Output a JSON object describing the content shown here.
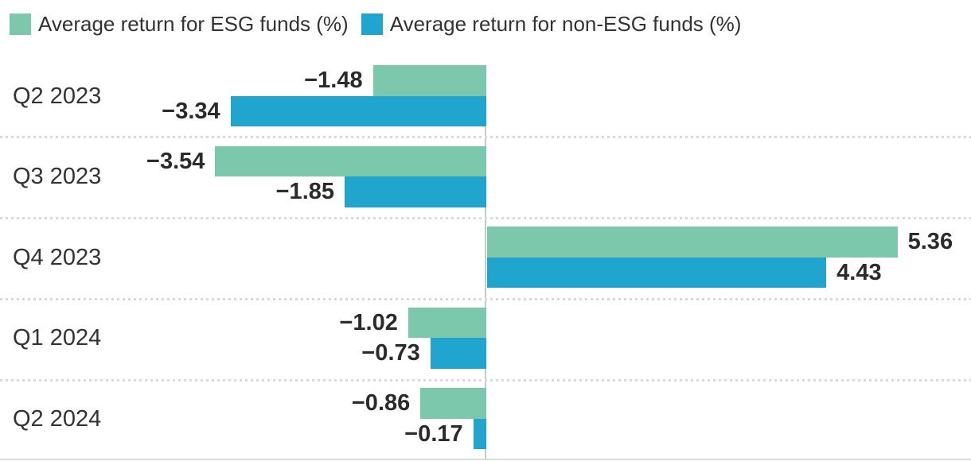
{
  "legend": {
    "items": [
      {
        "label": "Average return for ESG funds (%)",
        "color": "#7CC8AD",
        "icon": "esg-color-swatch"
      },
      {
        "label": "Average return for non-ESG funds (%)",
        "color": "#20A5CF",
        "icon": "non-esg-color-swatch"
      }
    ]
  },
  "chart_data": {
    "type": "bar",
    "orientation": "horizontal",
    "title": "",
    "categories": [
      "Q2 2023",
      "Q3 2023",
      "Q4 2023",
      "Q1 2024",
      "Q2 2024"
    ],
    "series": [
      {
        "name": "Average return for ESG funds (%)",
        "color": "#7CC8AD",
        "values": [
          -1.48,
          -3.54,
          5.36,
          -1.02,
          -0.86
        ],
        "value_labels": [
          "−1.48",
          "−3.54",
          "5.36",
          "−1.02",
          "−0.86"
        ]
      },
      {
        "name": "Average return for non-ESG funds (%)",
        "color": "#20A5CF",
        "values": [
          -3.34,
          -1.85,
          4.43,
          -0.73,
          -0.17
        ],
        "value_labels": [
          "−3.34",
          "−1.85",
          "4.43",
          "−0.73",
          "−0.17"
        ]
      }
    ],
    "xlim": [
      -6.3,
      6.3
    ],
    "value_label_position": "outside-end",
    "legend_position": "top-left",
    "grid": "dotted-row-separators",
    "zero_axis_line": true
  },
  "colors": {
    "esg": "#7CC8AD",
    "non_esg": "#20A5CF",
    "label_text": "#333333",
    "value_text": "#2B2B2B",
    "separator": "#D9D9D9",
    "axis_line": "#C9C9C9"
  }
}
